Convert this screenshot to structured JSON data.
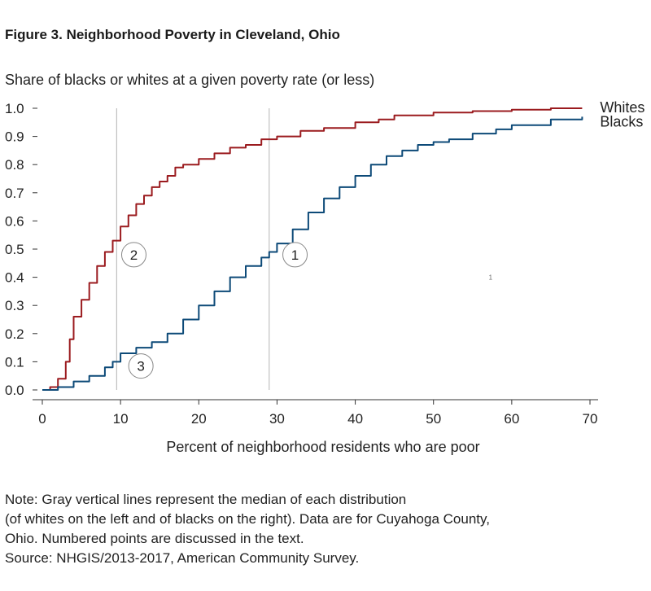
{
  "figure_title": "Figure 3. Neighborhood Poverty in Cleveland, Ohio",
  "notes": [
    "Note:  Gray vertical lines represent the median of each distribution",
    "(of whites on the left and of blacks on the right). Data are for Cuyahoga County,",
    "Ohio. Numbered points are discussed in the text.",
    "Source: NHGIS/2013-2017, American Community Survey."
  ],
  "colors": {
    "whites": "#9b1b1f",
    "blacks": "#0d4a78",
    "median": "#b5b5b5",
    "axis": "#333333"
  },
  "chart_data": {
    "type": "line",
    "ylabel": "Share of blacks or whites at a given poverty rate (or less)",
    "xlabel": "Percent of neighborhood residents who are poor",
    "xlim": [
      0,
      70
    ],
    "ylim": [
      0,
      1.0
    ],
    "x_ticks": [
      0,
      10,
      20,
      30,
      40,
      50,
      60,
      70
    ],
    "y_ticks": [
      "0.0",
      "0.1",
      "0.2",
      "0.3",
      "0.4",
      "0.5",
      "0.6",
      "0.7",
      "0.8",
      "0.9",
      "1.0"
    ],
    "median_lines": [
      9.5,
      29
    ],
    "series": [
      {
        "name": "Whites",
        "color": "#9b1b1f",
        "x": [
          0,
          1,
          2,
          3,
          3.5,
          4,
          5,
          6,
          7,
          8,
          9,
          10,
          11,
          12,
          13,
          14,
          15,
          16,
          17,
          18,
          20,
          22,
          24,
          26,
          28,
          30,
          33,
          36,
          40,
          43,
          45,
          50,
          55,
          60,
          65,
          69
        ],
        "y": [
          0,
          0.01,
          0.04,
          0.1,
          0.18,
          0.26,
          0.32,
          0.38,
          0.44,
          0.49,
          0.53,
          0.58,
          0.62,
          0.66,
          0.69,
          0.72,
          0.74,
          0.76,
          0.79,
          0.8,
          0.82,
          0.84,
          0.86,
          0.87,
          0.89,
          0.9,
          0.92,
          0.93,
          0.95,
          0.96,
          0.975,
          0.985,
          0.99,
          0.995,
          1.0,
          1.0
        ]
      },
      {
        "name": "Blacks",
        "color": "#0d4a78",
        "x": [
          0,
          2,
          4,
          6,
          8,
          9,
          10,
          12,
          14,
          16,
          18,
          20,
          22,
          24,
          26,
          28,
          29,
          30,
          32,
          34,
          36,
          38,
          40,
          42,
          44,
          46,
          48,
          50,
          52,
          55,
          58,
          60,
          65,
          69
        ],
        "y": [
          0,
          0.01,
          0.03,
          0.05,
          0.08,
          0.1,
          0.13,
          0.15,
          0.17,
          0.2,
          0.25,
          0.3,
          0.35,
          0.4,
          0.44,
          0.47,
          0.49,
          0.52,
          0.57,
          0.63,
          0.68,
          0.72,
          0.76,
          0.8,
          0.83,
          0.85,
          0.87,
          0.88,
          0.89,
          0.91,
          0.925,
          0.94,
          0.96,
          0.97
        ]
      }
    ],
    "annotations": [
      {
        "label": "1",
        "x": 32.3,
        "y": 0.48
      },
      {
        "label": "2",
        "x": 11.7,
        "y": 0.48
      },
      {
        "label": "3",
        "x": 12.6,
        "y": 0.085
      }
    ],
    "stray_mark": {
      "label": "1",
      "x": 57.3,
      "y": 0.4
    }
  }
}
